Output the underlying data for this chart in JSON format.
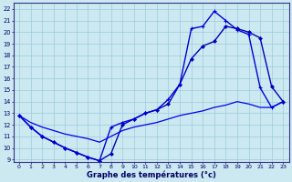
{
  "xlabel": "Graphe des températures (°c)",
  "x_ticks": [
    0,
    1,
    2,
    3,
    4,
    5,
    6,
    7,
    8,
    9,
    10,
    11,
    12,
    13,
    14,
    15,
    16,
    17,
    18,
    19,
    20,
    21,
    22,
    23
  ],
  "ylim": [
    8.8,
    22.5
  ],
  "xlim": [
    -0.5,
    23.5
  ],
  "yticks": [
    9,
    10,
    11,
    12,
    13,
    14,
    15,
    16,
    17,
    18,
    19,
    20,
    21,
    22
  ],
  "line1_y": [
    12.8,
    11.8,
    11.0,
    10.5,
    10.0,
    9.6,
    9.2,
    8.9,
    9.5,
    12.0,
    12.5,
    13.0,
    13.3,
    13.8,
    15.5,
    17.7,
    18.8,
    19.2,
    20.5,
    20.3,
    20.0,
    19.5,
    15.3,
    14.0
  ],
  "line2_y": [
    12.8,
    11.8,
    11.0,
    10.5,
    10.0,
    9.6,
    9.2,
    8.9,
    11.8,
    12.2,
    12.5,
    13.0,
    13.3,
    14.2,
    15.5,
    20.3,
    20.5,
    21.8,
    21.0,
    20.2,
    19.8,
    15.2,
    13.5,
    14.0
  ],
  "line3_y": [
    12.8,
    12.2,
    11.8,
    11.5,
    11.2,
    11.0,
    10.8,
    10.5,
    11.0,
    11.5,
    11.8,
    12.0,
    12.2,
    12.5,
    12.8,
    13.0,
    13.2,
    13.5,
    13.7,
    14.0,
    13.8,
    13.5,
    13.5,
    14.0
  ],
  "color1": "#0000bb",
  "color2": "#0000dd",
  "color3": "#0000ee",
  "bg_color": "#cce8f0",
  "grid_color": "#99ccdd",
  "text_color": "#000066",
  "spine_color": "#333388"
}
